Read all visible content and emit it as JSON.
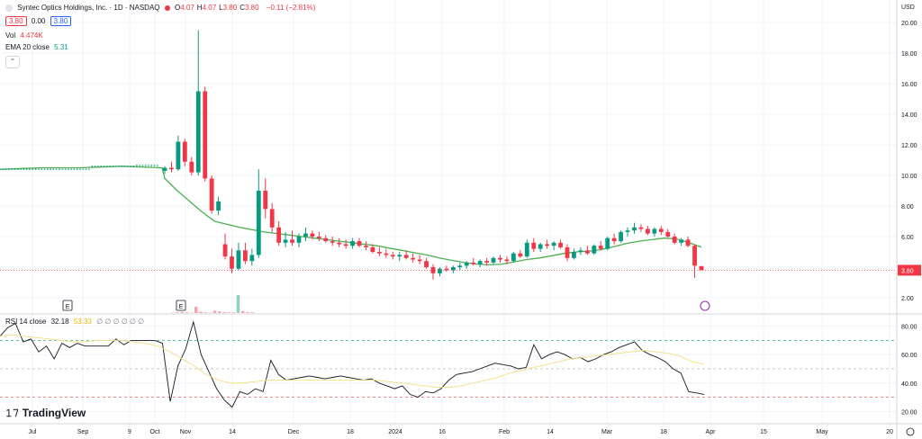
{
  "header": {
    "symbol_line": "Syntec Optics Holdings, Inc. · 1D · NASDAQ",
    "ohlc": [
      {
        "k": "O",
        "v": "4.07"
      },
      {
        "k": "H",
        "v": "4.07"
      },
      {
        "k": "L",
        "v": "3.80"
      },
      {
        "k": "C",
        "v": "3.80"
      }
    ],
    "change": "−0.11 (−2.81%)",
    "bid": "3.80",
    "spread": "0.00",
    "ask": "3.80",
    "vol_label": "Vol",
    "vol_value": "4.474K",
    "ema_label": "EMA 20 close",
    "ema_value": "5.31",
    "rsi_label": "RSI 14 close",
    "rsi_value": "32.18",
    "rsi_ma_value": "53.33",
    "rsi_extra": "∅ ∅ ∅ ∅ ∅ ∅",
    "collapse_glyph": "⌃",
    "logo_text": "TradingView"
  },
  "chart_data": {
    "type": "candlestick",
    "currency": "USD",
    "price_axis": {
      "ticks": [
        "20.00",
        "18.00",
        "16.00",
        "14.00",
        "12.00",
        "10.00",
        "8.00",
        "6.00",
        "4.00",
        "2.00"
      ],
      "ylim": [
        1.0,
        21.0
      ]
    },
    "last_price_label": "3.80",
    "rsi_axis": {
      "ticks": [
        "80.00",
        "60.00",
        "40.00",
        "20.00"
      ],
      "ylim": [
        12,
        88
      ],
      "bands": [
        70,
        50,
        30
      ]
    },
    "time_axis": [
      "Jul",
      "Sep",
      "9",
      "Oct",
      "Nov",
      "14",
      "Dec",
      "18",
      "2024",
      "16",
      "Feb",
      "14",
      "Mar",
      "18",
      "Apr",
      "15",
      "May",
      "20"
    ],
    "earnings_markers": [
      "E",
      "E"
    ],
    "colors": {
      "up": "#089981",
      "down": "#f23645",
      "ema": "#4caf50",
      "rsi": "#131722",
      "rsi_ma": "#f5e08c",
      "price_line": "#f23645"
    },
    "candles_flat": {
      "from": "Jul",
      "to": "Oct 28",
      "price": 10.4
    },
    "candles": [
      [
        10.3,
        10.6,
        10.1,
        10.5
      ],
      [
        10.5,
        10.9,
        10.2,
        10.4
      ],
      [
        10.4,
        12.6,
        10.3,
        12.2
      ],
      [
        12.2,
        12.4,
        10.6,
        10.9
      ],
      [
        10.9,
        11.2,
        10.0,
        10.2
      ],
      [
        10.2,
        19.5,
        10.0,
        15.5
      ],
      [
        15.5,
        15.8,
        9.6,
        9.8
      ],
      [
        9.8,
        10.0,
        7.5,
        7.7
      ],
      [
        7.7,
        8.6,
        7.4,
        8.3
      ],
      [
        5.5,
        6.2,
        4.5,
        4.7
      ],
      [
        4.7,
        5.2,
        3.6,
        3.9
      ],
      [
        3.9,
        5.6,
        3.8,
        5.1
      ],
      [
        5.1,
        5.6,
        4.2,
        4.4
      ],
      [
        4.4,
        5.2,
        4.1,
        4.8
      ],
      [
        4.8,
        10.4,
        4.6,
        9.0
      ],
      [
        9.0,
        9.8,
        7.2,
        7.8
      ],
      [
        7.8,
        8.2,
        6.3,
        6.6
      ],
      [
        6.6,
        7.0,
        5.4,
        5.6
      ],
      [
        5.6,
        6.3,
        5.3,
        5.8
      ],
      [
        5.8,
        6.4,
        5.4,
        5.6
      ],
      [
        5.6,
        6.2,
        5.3,
        6.0
      ],
      [
        6.0,
        6.6,
        5.7,
        6.2
      ],
      [
        6.2,
        6.4,
        5.8,
        6.0
      ],
      [
        6.0,
        6.3,
        5.7,
        5.9
      ],
      [
        5.9,
        6.1,
        5.6,
        5.7
      ],
      [
        5.7,
        6.0,
        5.4,
        5.6
      ],
      [
        5.6,
        5.9,
        5.3,
        5.5
      ],
      [
        5.5,
        5.8,
        5.2,
        5.4
      ],
      [
        5.4,
        5.9,
        5.2,
        5.7
      ],
      [
        5.7,
        5.9,
        5.3,
        5.4
      ],
      [
        5.4,
        5.7,
        5.1,
        5.3
      ],
      [
        5.3,
        5.5,
        4.9,
        5.0
      ],
      [
        5.0,
        5.3,
        4.7,
        4.9
      ],
      [
        4.9,
        5.2,
        4.6,
        4.8
      ],
      [
        4.8,
        5.0,
        4.5,
        4.7
      ],
      [
        4.7,
        5.0,
        4.4,
        4.8
      ],
      [
        4.8,
        5.1,
        4.5,
        4.6
      ],
      [
        4.6,
        4.9,
        4.3,
        4.5
      ],
      [
        4.5,
        4.8,
        4.2,
        4.4
      ],
      [
        4.4,
        4.6,
        3.9,
        4.0
      ],
      [
        4.0,
        4.2,
        3.2,
        3.6
      ],
      [
        3.6,
        4.0,
        3.4,
        3.9
      ],
      [
        3.9,
        4.1,
        3.7,
        3.8
      ],
      [
        3.8,
        4.1,
        3.6,
        4.0
      ],
      [
        4.0,
        4.3,
        3.8,
        4.1
      ],
      [
        4.1,
        4.4,
        3.9,
        4.3
      ],
      [
        4.3,
        4.6,
        4.1,
        4.2
      ],
      [
        4.2,
        4.5,
        4.0,
        4.4
      ],
      [
        4.4,
        4.6,
        4.1,
        4.3
      ],
      [
        4.3,
        4.7,
        4.2,
        4.6
      ],
      [
        4.6,
        4.8,
        4.3,
        4.5
      ],
      [
        4.5,
        4.7,
        4.2,
        4.4
      ],
      [
        4.4,
        5.0,
        4.3,
        4.9
      ],
      [
        4.9,
        5.1,
        4.6,
        4.7
      ],
      [
        4.7,
        5.8,
        4.6,
        5.6
      ],
      [
        5.6,
        5.9,
        5.0,
        5.2
      ],
      [
        5.2,
        5.6,
        5.0,
        5.5
      ],
      [
        5.5,
        5.8,
        5.2,
        5.4
      ],
      [
        5.4,
        5.7,
        5.1,
        5.6
      ],
      [
        5.6,
        5.8,
        5.2,
        5.3
      ],
      [
        5.3,
        5.5,
        4.4,
        4.6
      ],
      [
        4.6,
        5.2,
        4.5,
        5.0
      ],
      [
        5.0,
        5.3,
        4.8,
        5.1
      ],
      [
        5.1,
        5.4,
        4.8,
        4.9
      ],
      [
        4.9,
        5.5,
        4.8,
        5.4
      ],
      [
        5.4,
        5.7,
        5.1,
        5.2
      ],
      [
        5.2,
        6.0,
        5.1,
        5.9
      ],
      [
        5.9,
        6.2,
        5.5,
        5.7
      ],
      [
        5.7,
        6.4,
        5.6,
        6.3
      ],
      [
        6.3,
        6.6,
        6.0,
        6.4
      ],
      [
        6.4,
        6.9,
        6.2,
        6.6
      ],
      [
        6.6,
        6.8,
        6.3,
        6.5
      ],
      [
        6.5,
        6.7,
        6.1,
        6.2
      ],
      [
        6.2,
        6.6,
        6.0,
        6.5
      ],
      [
        6.5,
        6.7,
        6.1,
        6.3
      ],
      [
        6.3,
        6.5,
        5.9,
        6.0
      ],
      [
        6.0,
        6.2,
        5.5,
        5.6
      ],
      [
        5.6,
        5.9,
        5.4,
        5.8
      ],
      [
        5.8,
        6.0,
        5.3,
        5.4
      ],
      [
        5.4,
        5.5,
        3.3,
        4.1
      ],
      [
        4.07,
        4.07,
        3.8,
        3.8
      ]
    ],
    "ema_points": [
      10.4,
      10.5,
      10.5,
      10.6,
      10.5,
      9.8,
      9.0,
      8.3,
      7.6,
      7.0,
      6.8,
      6.6,
      6.45,
      6.3,
      6.2,
      6.1,
      6.0,
      5.9,
      5.8,
      5.7,
      5.6,
      5.5,
      5.4,
      5.25,
      5.1,
      4.95,
      4.8,
      4.6,
      4.45,
      4.3,
      4.2,
      4.15,
      4.2,
      4.35,
      4.5,
      4.6,
      4.75,
      4.9,
      5.0,
      5.05,
      5.15,
      5.35,
      5.55,
      5.7,
      5.8,
      5.9,
      5.85,
      5.6,
      5.31
    ],
    "volume": [
      0.2,
      0.3,
      0.5,
      0.3,
      0.2,
      2.8,
      0.6,
      0.3,
      0.2,
      1.0,
      0.7,
      0.4,
      0.3,
      0.3,
      8.0,
      0.9,
      0.4,
      0.3
    ],
    "rsi": [
      73,
      79,
      82,
      69,
      71,
      62,
      66,
      57,
      68,
      65,
      68,
      66,
      66,
      66,
      66,
      71,
      67,
      70,
      70,
      70,
      70,
      68,
      27,
      52,
      64,
      83,
      60,
      48,
      36,
      28,
      23,
      34,
      32,
      36,
      34,
      56,
      46,
      42,
      43,
      44,
      45,
      44,
      43,
      44,
      45,
      44,
      43,
      42,
      43,
      40,
      38,
      36,
      38,
      32,
      30,
      34,
      33,
      36,
      42,
      46,
      47,
      48,
      50,
      52,
      54,
      53,
      52,
      50,
      51,
      67,
      57,
      60,
      62,
      60,
      57,
      58,
      55,
      57,
      60,
      62,
      65,
      67,
      69,
      63,
      60,
      58,
      55,
      50,
      47,
      34,
      33,
      32
    ],
    "rsi_ma": [
      73,
      74,
      73,
      72,
      71,
      70,
      69,
      69,
      70,
      70,
      70,
      69,
      68,
      66,
      62,
      57,
      52,
      46,
      42,
      40,
      40,
      41,
      42,
      42,
      42,
      42,
      42,
      42,
      42,
      42,
      42,
      42,
      41,
      40,
      39,
      38,
      37,
      37,
      38,
      40,
      42,
      44,
      47,
      49,
      51,
      53,
      55,
      57,
      58,
      59,
      60,
      61,
      62,
      63,
      62,
      61,
      59,
      55,
      53.33
    ]
  }
}
